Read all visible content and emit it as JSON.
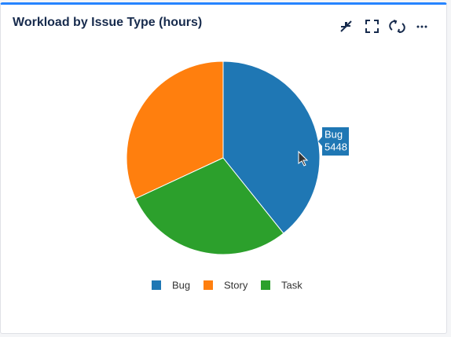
{
  "chart_data": {
    "type": "pie",
    "title": "Workload by Issue Type (hours)",
    "categories": [
      "Bug",
      "Story",
      "Task"
    ],
    "values": [
      5448,
      4430,
      4000
    ],
    "colors": [
      "#1f77b4",
      "#ff7f0e",
      "#2ca02c"
    ],
    "tooltip": {
      "index": 0
    }
  }
}
